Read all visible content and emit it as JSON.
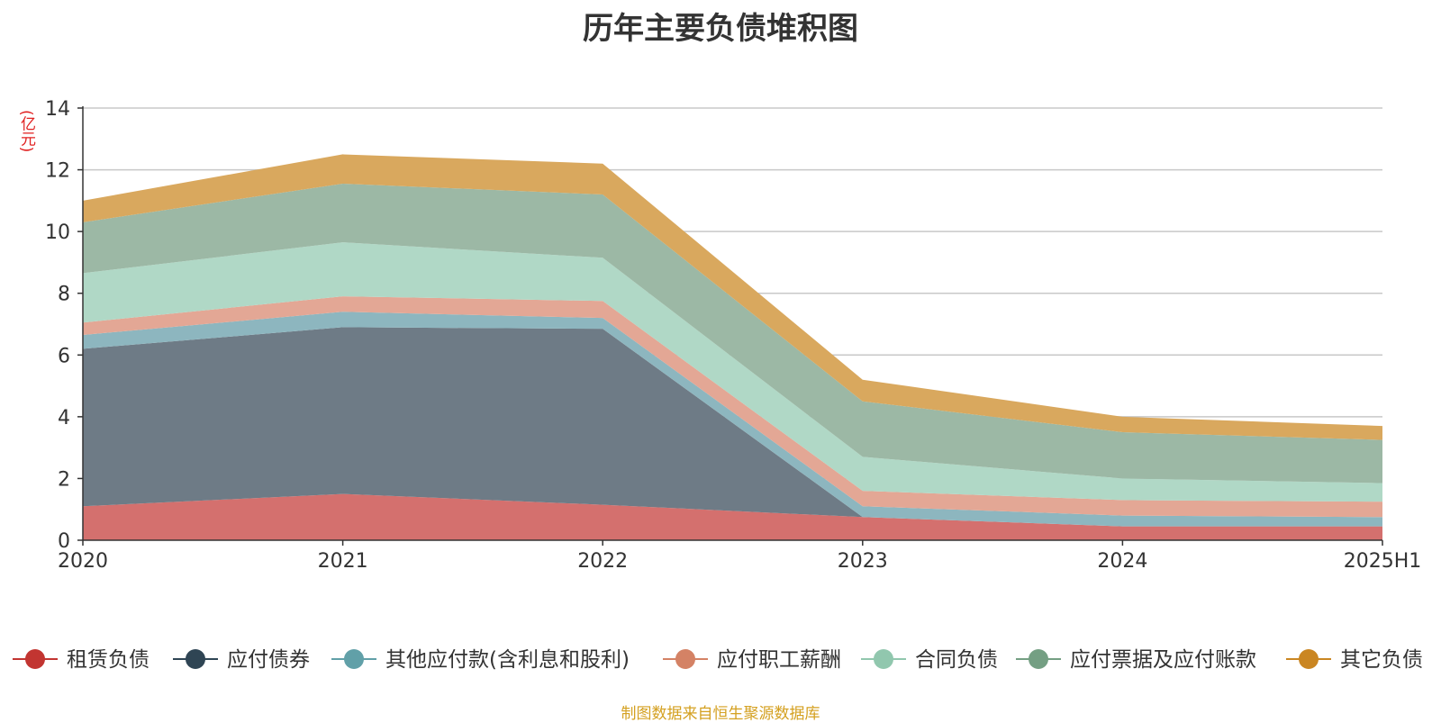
{
  "chart_data": {
    "type": "area",
    "stacked": true,
    "title": "历年主要负债堆积图",
    "unit_label": "(亿元)",
    "xlabel": "",
    "ylabel": "(亿元)",
    "x": [
      "2020",
      "2021",
      "2022",
      "2023",
      "2024",
      "2025H1"
    ],
    "ylim": [
      0,
      14
    ],
    "yticks": [
      0,
      2,
      4,
      6,
      8,
      10,
      12,
      14
    ],
    "grid": true,
    "legend_position": "bottom",
    "series": [
      {
        "name": "租赁负债",
        "color": "#d4706e",
        "legend_color": "#c23531",
        "values": [
          1.1,
          1.5,
          1.15,
          0.75,
          0.45,
          0.45
        ]
      },
      {
        "name": "应付债券",
        "color": "#6e7b86",
        "legend_color": "#2f4554",
        "values": [
          5.1,
          5.4,
          5.7,
          0.0,
          0.0,
          0.0
        ]
      },
      {
        "name": "其他应付款(含利息和股利)",
        "color": "#8db6bf",
        "legend_color": "#61a0a8",
        "values": [
          0.45,
          0.5,
          0.35,
          0.35,
          0.35,
          0.3
        ]
      },
      {
        "name": "应付职工薪酬",
        "color": "#e3a795",
        "legend_color": "#d48265",
        "values": [
          0.4,
          0.5,
          0.55,
          0.5,
          0.5,
          0.5
        ]
      },
      {
        "name": "合同负债",
        "color": "#b0d8c6",
        "legend_color": "#91c7ae",
        "values": [
          1.6,
          1.75,
          1.4,
          1.1,
          0.7,
          0.6
        ]
      },
      {
        "name": "应付票据及应付账款",
        "color": "#9cb8a5",
        "legend_color": "#749f83",
        "values": [
          1.65,
          1.9,
          2.05,
          1.8,
          1.5,
          1.4
        ]
      },
      {
        "name": "其它负债",
        "color": "#d9a85e",
        "legend_color": "#ca8622",
        "values": [
          0.7,
          0.95,
          1.0,
          0.7,
          0.5,
          0.45
        ]
      }
    ]
  },
  "source_note": "制图数据来自恒生聚源数据库"
}
